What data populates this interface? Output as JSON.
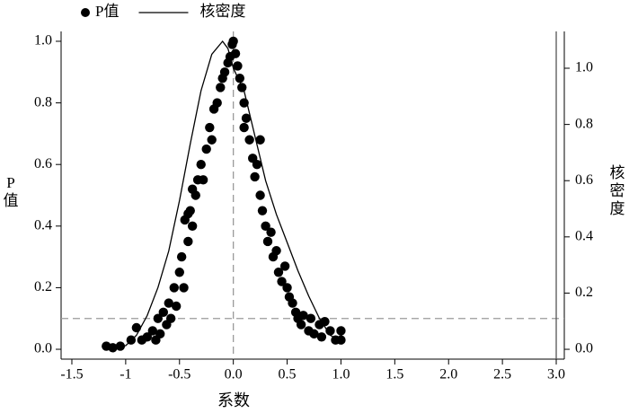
{
  "chart_data": {
    "type": "scatter",
    "x_label": "系数",
    "y_label": "P值",
    "y2_label": "核密度",
    "xlim": [
      -1.6,
      3.075
    ],
    "xticks": [
      -1.5,
      -1,
      -0.5,
      {
        "value": 0,
        "label": "0.0"
      },
      0.5,
      {
        "value": 1,
        "label": "1.0"
      },
      1.5,
      {
        "value": 2,
        "label": "2.0"
      },
      2.5,
      {
        "value": 3,
        "label": "3.0"
      }
    ],
    "ylim": [
      -0.032,
      1.032
    ],
    "yticks": [
      {
        "value": 0,
        "label": "0.0"
      },
      0.2,
      0.4,
      0.6,
      0.8,
      {
        "value": 1,
        "label": "1.0"
      }
    ],
    "y2lim": [
      -0.035,
      1.131
    ],
    "y2ticks": [
      {
        "value": 0,
        "label": "0.0"
      },
      0.2,
      0.4,
      0.6,
      0.8,
      {
        "value": 1,
        "label": "1.0"
      }
    ],
    "reference_lines": [
      {
        "axis": "x",
        "value": 0,
        "style": "dashed",
        "color": "#9a9a9a"
      },
      {
        "axis": "y",
        "value": 0.1,
        "style": "dashed",
        "color": "#9a9a9a"
      },
      {
        "axis": "x",
        "value": 3,
        "style": "solid",
        "color": "#555555"
      }
    ],
    "legend": "top-left",
    "series": [
      {
        "name": "P值",
        "type": "scatter",
        "color": "#000000",
        "x": [
          -1.18,
          -1.12,
          -1.05,
          -0.95,
          -0.9,
          -0.85,
          -0.8,
          -0.75,
          -0.72,
          -0.7,
          -0.68,
          -0.65,
          -0.62,
          -0.6,
          -0.58,
          -0.55,
          -0.53,
          -0.5,
          -0.48,
          -0.46,
          -0.45,
          -0.42,
          -0.42,
          -0.4,
          -0.38,
          -0.38,
          -0.35,
          -0.33,
          -0.3,
          -0.28,
          -0.25,
          -0.22,
          -0.2,
          -0.18,
          -0.15,
          -0.12,
          -0.1,
          -0.08,
          -0.05,
          -0.03,
          -0.01,
          0,
          0.02,
          0.04,
          0.06,
          0.08,
          0.1,
          0.1,
          0.12,
          0.15,
          0.18,
          0.2,
          0.22,
          0.25,
          0.25,
          0.27,
          0.3,
          0.32,
          0.35,
          0.37,
          0.4,
          0.42,
          0.45,
          0.48,
          0.5,
          0.52,
          0.55,
          0.58,
          0.6,
          0.63,
          0.65,
          0.7,
          0.72,
          0.75,
          0.8,
          0.82,
          0.85,
          0.9,
          0.95,
          1,
          1
        ],
        "values": [
          0.01,
          0.005,
          0.01,
          0.03,
          0.07,
          0.03,
          0.04,
          0.06,
          0.03,
          0.1,
          0.05,
          0.12,
          0.08,
          0.15,
          0.1,
          0.2,
          0.14,
          0.25,
          0.3,
          0.2,
          0.42,
          0.35,
          0.44,
          0.45,
          0.4,
          0.52,
          0.5,
          0.55,
          0.6,
          0.55,
          0.65,
          0.72,
          0.68,
          0.78,
          0.8,
          0.85,
          0.88,
          0.9,
          0.93,
          0.95,
          0.99,
          1,
          0.96,
          0.92,
          0.88,
          0.85,
          0.8,
          0.72,
          0.75,
          0.68,
          0.62,
          0.56,
          0.6,
          0.5,
          0.68,
          0.45,
          0.4,
          0.35,
          0.38,
          0.3,
          0.32,
          0.25,
          0.22,
          0.27,
          0.2,
          0.17,
          0.15,
          0.12,
          0.1,
          0.08,
          0.11,
          0.06,
          0.1,
          0.05,
          0.08,
          0.04,
          0.09,
          0.06,
          0.03,
          0.06,
          0.03
        ]
      },
      {
        "name": "核密度",
        "type": "line",
        "axis": "y2",
        "color": "#000000",
        "x": [
          -1.1,
          -1,
          -0.9,
          -0.8,
          -0.7,
          -0.6,
          -0.5,
          -0.4,
          -0.3,
          -0.2,
          -0.1,
          -0.05,
          0,
          0.1,
          0.2,
          0.3,
          0.4,
          0.5,
          0.6,
          0.7,
          0.8,
          0.9,
          1
        ],
        "values": [
          0.01,
          0.013,
          0.05,
          0.12,
          0.22,
          0.35,
          0.53,
          0.73,
          0.92,
          1.05,
          1.096,
          1.07,
          1,
          0.92,
          0.76,
          0.6,
          0.48,
          0.38,
          0.28,
          0.19,
          0.11,
          0.05,
          0.03
        ]
      }
    ]
  }
}
